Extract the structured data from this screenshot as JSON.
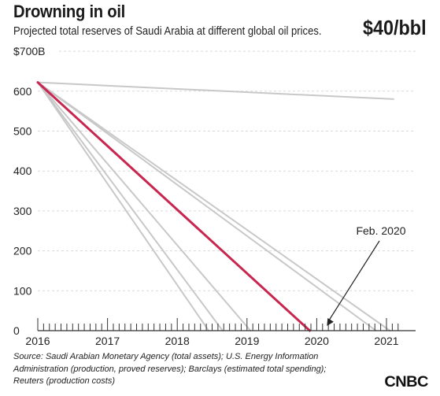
{
  "header": {
    "title": "Drowning in oil",
    "subtitle": "Projected total reserves of Saudi Arabia at different global oil prices.",
    "price_label": "$40/bbl"
  },
  "footer": {
    "source_lines": [
      "Source: Saudi Arabian Monetary Agency (total assets); U.S. Energy Information",
      "Administration (production, proved reserves); Barclays (estimated total spending);",
      "Reuters (production costs)"
    ],
    "logo": "CNBC"
  },
  "chart_data": {
    "type": "line",
    "title": "Drowning in oil",
    "subtitle": "Projected total reserves of Saudi Arabia at different global oil prices.",
    "ylim": [
      0,
      700
    ],
    "xlim": [
      2016,
      2021.2
    ],
    "y_ticks": [
      {
        "value": 700,
        "label": "$700B"
      },
      {
        "value": 600,
        "label": "600"
      },
      {
        "value": 500,
        "label": "500"
      },
      {
        "value": 400,
        "label": "400"
      },
      {
        "value": 300,
        "label": "300"
      },
      {
        "value": 200,
        "label": "200"
      },
      {
        "value": 100,
        "label": "100"
      },
      {
        "value": 0,
        "label": "0"
      }
    ],
    "x_ticks": [
      {
        "value": 2016,
        "label": "2016"
      },
      {
        "value": 2017,
        "label": "2017"
      },
      {
        "value": 2018,
        "label": "2018"
      },
      {
        "value": 2019,
        "label": "2019"
      },
      {
        "value": 2020,
        "label": "2020"
      },
      {
        "value": 2021,
        "label": "2021"
      }
    ],
    "grid": true,
    "colors": {
      "highlight": "#c8264f",
      "other": "#c8c8c8",
      "grid": "#d9d9d9",
      "axis": "#333333"
    },
    "series": [
      {
        "highlight": false,
        "x": [
          2016,
          2021.1
        ],
        "y": [
          622,
          580
        ]
      },
      {
        "highlight": false,
        "x": [
          2016,
          2018.45
        ],
        "y": [
          622,
          0
        ]
      },
      {
        "highlight": false,
        "x": [
          2016,
          2018.65
        ],
        "y": [
          622,
          0
        ]
      },
      {
        "highlight": false,
        "x": [
          2016,
          2019.05
        ],
        "y": [
          622,
          0
        ]
      },
      {
        "highlight": false,
        "x": [
          2016,
          2020.85
        ],
        "y": [
          622,
          0
        ]
      },
      {
        "highlight": false,
        "x": [
          2016,
          2021.05
        ],
        "y": [
          622,
          0
        ]
      },
      {
        "highlight": true,
        "x": [
          2016,
          2019.9
        ],
        "y": [
          622,
          0
        ]
      }
    ],
    "annotations": [
      {
        "text": "Feb. 2020",
        "x": 2020.1,
        "y": 0
      }
    ]
  }
}
